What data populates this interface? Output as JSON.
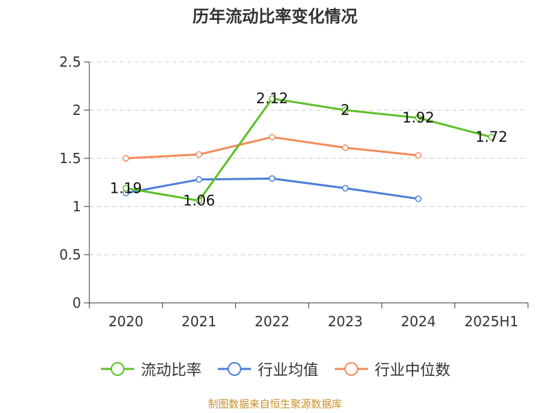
{
  "title": "历年流动比率变化情况",
  "source": "制图数据来自恒生聚源数据库",
  "chart_data": {
    "type": "line",
    "categories": [
      "2020",
      "2021",
      "2022",
      "2023",
      "2024",
      "2025H1"
    ],
    "ylim": [
      0,
      2.5
    ],
    "yticks": [
      "0",
      "0.5",
      "1",
      "1.5",
      "2",
      "2.5"
    ],
    "grid": true,
    "legend_position": "bottom",
    "series": [
      {
        "name": "流动比率",
        "color": "#5fc02a",
        "values": [
          1.19,
          1.06,
          2.12,
          2.0,
          1.92,
          1.72
        ],
        "labels": [
          "1.19",
          "1.06",
          "2.12",
          "2",
          "1.92",
          "1.72"
        ]
      },
      {
        "name": "行业均值",
        "color": "#4a7fd8",
        "values": [
          1.14,
          1.28,
          1.29,
          1.19,
          1.08,
          null
        ]
      },
      {
        "name": "行业中位数",
        "color": "#f08c5a",
        "values": [
          1.5,
          1.54,
          1.72,
          1.61,
          1.53,
          null
        ]
      }
    ]
  }
}
